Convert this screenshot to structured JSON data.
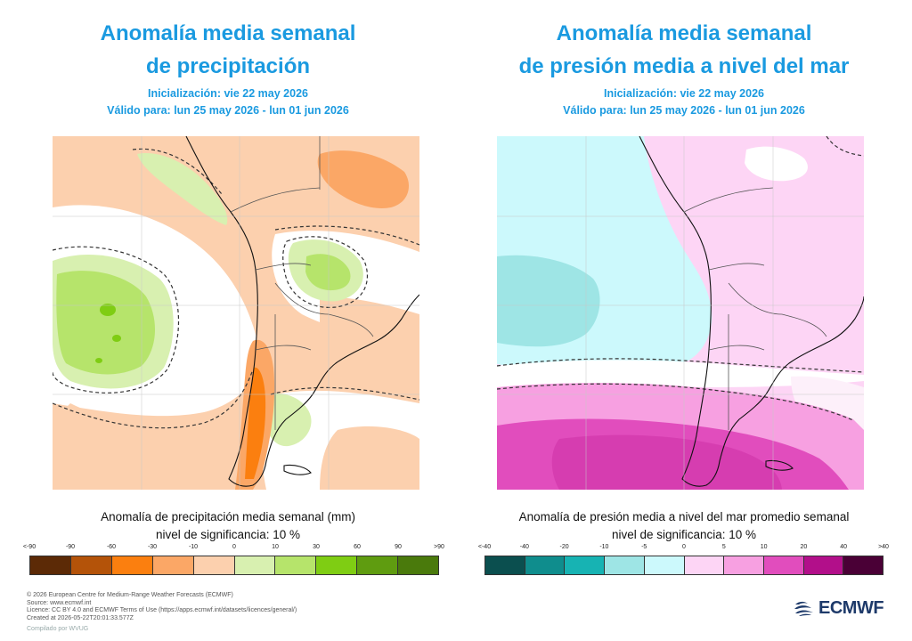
{
  "panels": [
    {
      "title_line1": "Anomalía media semanal",
      "title_line2": "de precipitación",
      "init_label": "Inicialización: vie 22 may 2026",
      "valid_label": "Válido para: lun 25 may 2026 - lun 01 jun 2026",
      "caption_line1": "Anomalía de precipitación media semanal (mm)",
      "caption_line2": "nivel de significancia: 10 %",
      "tick_labels": [
        "<-90",
        "-90",
        "-60",
        "-30",
        "-10",
        "0",
        "10",
        "30",
        "60",
        "90",
        ">90"
      ],
      "colors": [
        "#5c2a06",
        "#b45309",
        "#fb7f0f",
        "#fba766",
        "#fcd0ae",
        "#d8f0b0",
        "#b6e46b",
        "#7fcd13",
        "#5f9c10",
        "#4a7a0c"
      ]
    },
    {
      "title_line1": "Anomalía media semanal",
      "title_line2": "de presión media a nivel del mar",
      "init_label": "Inicialización: vie 22 may 2026",
      "valid_label": "Válido para: lun 25 may 2026 - lun 01 jun 2026",
      "caption_line1": "Anomalía de presión media a nivel del mar promedio semanal",
      "caption_line2": "nivel de significancia: 10 %",
      "tick_labels": [
        "<-40",
        "-40",
        "-20",
        "-10",
        "-5",
        "0",
        "5",
        "10",
        "20",
        "40",
        ">40"
      ],
      "colors": [
        "#0b4f4f",
        "#0f8d8d",
        "#17b3b3",
        "#9ee5e5",
        "#ccf9fc",
        "#fdd5f5",
        "#f7a0e1",
        "#e14dbd",
        "#b20f8a",
        "#4a0036"
      ]
    }
  ],
  "footer": {
    "line1": "© 2026 European Centre for Medium-Range Weather Forecasts (ECMWF)",
    "line2": "Source: www.ecmwf.int",
    "line3": "Licence: CC BY 4.0 and ECMWF Terms of Use (https://apps.ecmwf.int/datasets/licences/general/)",
    "line4": "Created at 2026-05-22T20:01:33.577Z",
    "compiled": "Compilado por WVUG"
  },
  "logo": {
    "text": "ECMWF",
    "color": "#1e3a6a"
  }
}
